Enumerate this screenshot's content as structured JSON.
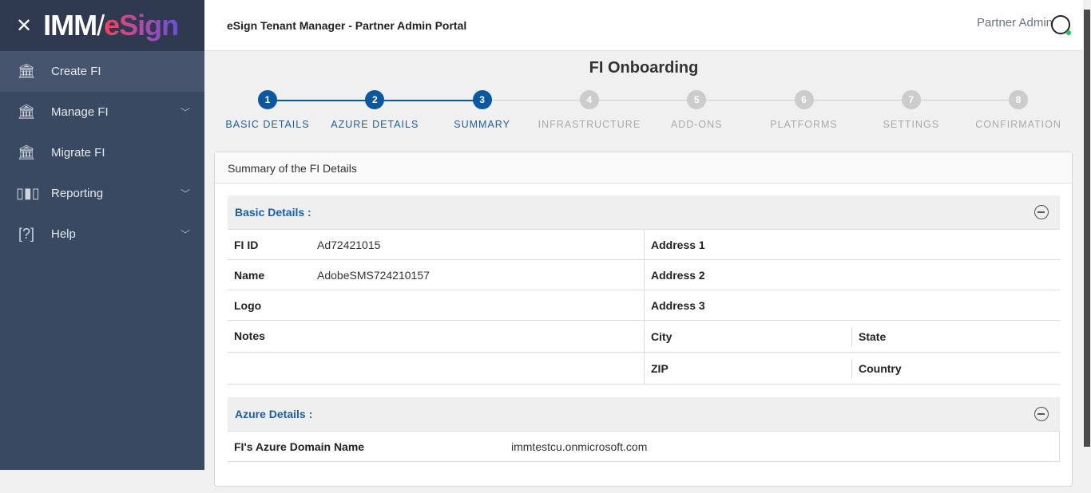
{
  "sidebar": {
    "logo_left": "IMM",
    "logo_right": "eSign",
    "items": [
      {
        "label": "Create FI",
        "icon": "bank-plus-icon"
      },
      {
        "label": "Manage FI",
        "icon": "bank-gear-icon"
      },
      {
        "label": "Migrate FI",
        "icon": "bank-arrow-icon"
      },
      {
        "label": "Reporting",
        "icon": "bar-chart-icon"
      },
      {
        "label": "Help",
        "icon": "help-bubble-icon"
      }
    ]
  },
  "header": {
    "title": "eSign Tenant Manager - Partner Admin Portal",
    "user": "Partner Admin"
  },
  "page_title": "FI Onboarding",
  "steps": [
    {
      "n": "1",
      "label": "BASIC DETAILS"
    },
    {
      "n": "2",
      "label": "AZURE DETAILS"
    },
    {
      "n": "3",
      "label": "SUMMARY"
    },
    {
      "n": "4",
      "label": "INFRASTRUCTURE"
    },
    {
      "n": "5",
      "label": "ADD-ONS"
    },
    {
      "n": "6",
      "label": "PLATFORMS"
    },
    {
      "n": "7",
      "label": "SETTINGS"
    },
    {
      "n": "8",
      "label": "CONFIRMATION"
    }
  ],
  "current_step": 3,
  "card": {
    "title": "Summary of the FI Details",
    "basic": {
      "title": "Basic Details :",
      "fi_id_label": "FI ID",
      "fi_id": "Ad72421015",
      "name_label": "Name",
      "name": "AdobeSMS724210157",
      "logo_label": "Logo",
      "notes_label": "Notes",
      "address1": "Address 1",
      "address2": "Address 2",
      "address3": "Address 3",
      "city": "City",
      "state": "State",
      "zip": "ZIP",
      "country": "Country"
    },
    "azure": {
      "title": "Azure Details :",
      "domain_label": "FI's Azure Domain Name",
      "domain": "immtestcu.onmicrosoft.com"
    }
  }
}
